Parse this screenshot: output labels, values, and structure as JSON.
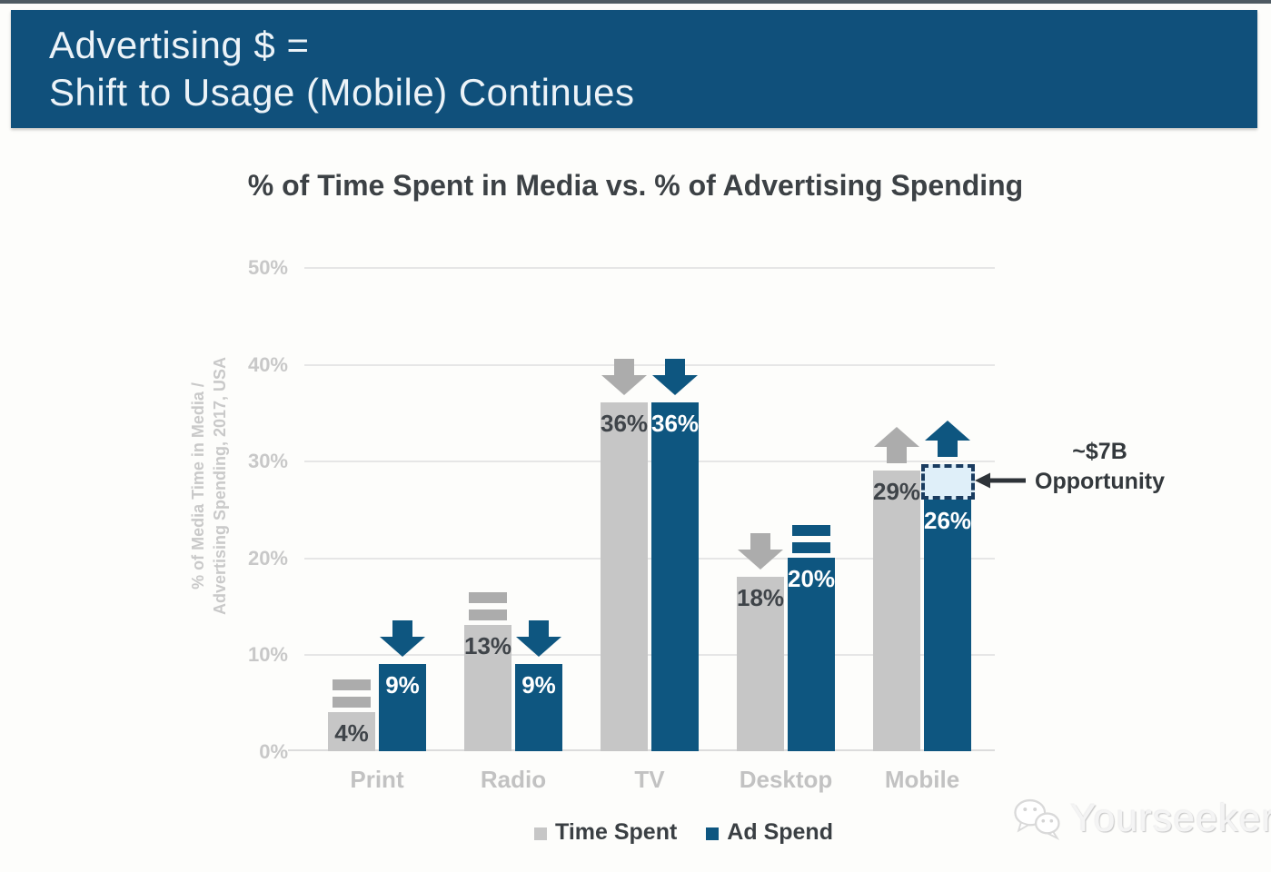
{
  "banner": {
    "line1": "Advertising $ =",
    "line2": "Shift to Usage (Mobile) Continues",
    "bg_color": "#10507B"
  },
  "chart_data": {
    "type": "bar",
    "title": "% of Time Spent in Media vs. % of Advertising Spending",
    "ylabel_line1": "% of Media Time in Media /",
    "ylabel_line2": "Advertising Spending, 2017, USA",
    "categories": [
      "Print",
      "Radio",
      "TV",
      "Desktop",
      "Mobile"
    ],
    "series": [
      {
        "name": "Time Spent",
        "color": "#C6C6C6",
        "indicator_color": "#ACACAC",
        "values": [
          4,
          13,
          36,
          18,
          29
        ],
        "trends": [
          "flat",
          "flat",
          "down",
          "down",
          "up"
        ]
      },
      {
        "name": "Ad Spend",
        "color": "#0E5680",
        "indicator_color": "#0E5680",
        "values": [
          9,
          9,
          36,
          20,
          26
        ],
        "trends": [
          "down",
          "down",
          "down",
          "flat",
          "up"
        ]
      }
    ],
    "value_suffix": "%",
    "ylim": [
      0,
      50
    ],
    "yticks": [
      "50%",
      "40%",
      "30%",
      "20%",
      "10%",
      "0%"
    ],
    "grid": true,
    "legend_position": "bottom",
    "opportunity_box": {
      "category": "Mobile",
      "series": "Ad Spend",
      "from_pct": 26,
      "to_pct": 29.6,
      "fill": "#DFEFF9",
      "border": "#1A3C60"
    },
    "annotation": {
      "line1": "~$7B",
      "line2": "Opportunity"
    }
  },
  "legend": {
    "items": [
      {
        "label": "Time Spent",
        "color": "#C6C6C6"
      },
      {
        "label": "Ad Spend",
        "color": "#0E5680"
      }
    ]
  },
  "watermark": {
    "text": "Yourseeker"
  }
}
